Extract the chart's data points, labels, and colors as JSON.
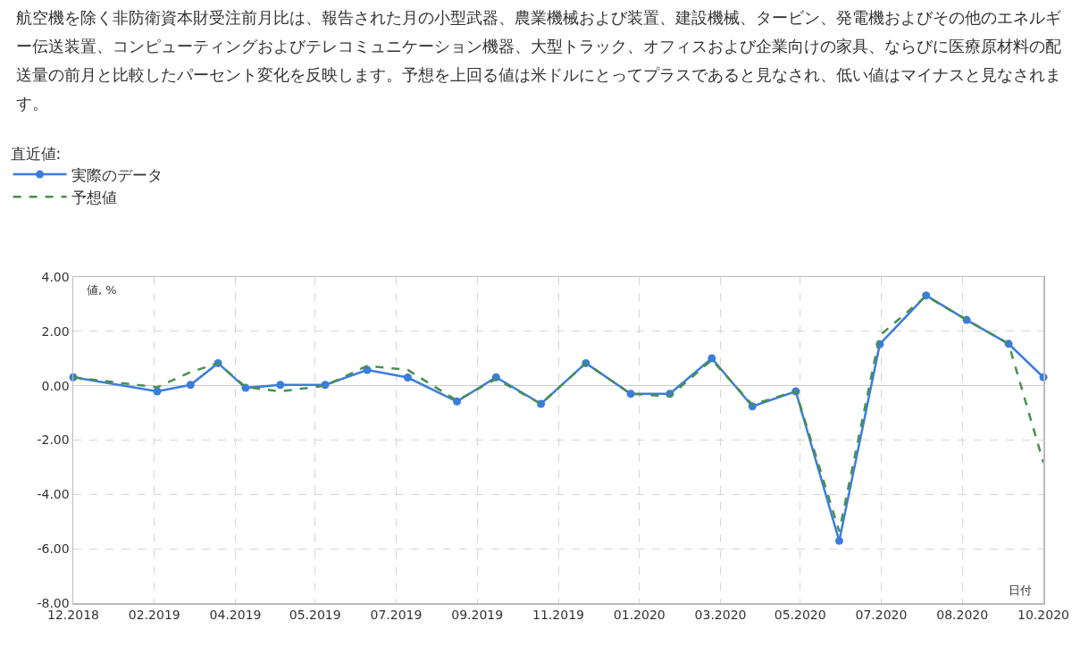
{
  "chart_data": {
    "type": "line",
    "annotations": [
      "航空機を除く非防衛資本財受注前月比は、報告された月の小型武器、農業機械および装置、建設機械、タービン、発電機およびその他のエネルギー伝送装置、コンピューティングおよびテレコミュニケーション機器、大型トラック、オフィスおよび企業向けの家具、ならびに医療原材料の配送量の前月と比較したパーセント変化を反映します。予想を上回る値は米ドルにとってプラスであると見なされ、低い値はマイナスと見なされます。"
    ],
    "legend_title": "直近値:",
    "xlabel": "日付",
    "ylabel": "値, %",
    "x": [
      "2018-12-06",
      "2019-02-02",
      "2019-02-25",
      "2019-03-16",
      "2019-04-04",
      "2019-04-28",
      "2019-05-29",
      "2019-06-27",
      "2019-07-25",
      "2019-08-28",
      "2019-09-24",
      "2019-10-25",
      "2019-11-25",
      "2019-12-26",
      "2020-01-22",
      "2020-02-20",
      "2020-03-19",
      "2020-04-18",
      "2020-05-18",
      "2020-06-15",
      "2020-07-17",
      "2020-08-14",
      "2020-09-12",
      "2020-10-06"
    ],
    "series": [
      {
        "name": "実際のデータ",
        "color": "#3b7ddd",
        "marker": "circle",
        "line_style": "solid",
        "values": [
          0.31,
          -0.21,
          0.03,
          0.83,
          -0.08,
          0.03,
          0.03,
          0.58,
          0.3,
          -0.58,
          0.31,
          -0.67,
          0.83,
          -0.3,
          -0.3,
          1.01,
          -0.76,
          -0.21,
          -5.71,
          1.53,
          3.32,
          2.42,
          1.54,
          0.31
        ]
      },
      {
        "name": "予想値",
        "color": "#4a8f4f",
        "marker": "none",
        "line_style": "dashed",
        "values": [
          0.31,
          -0.06,
          0.5,
          0.83,
          -0.05,
          -0.21,
          0.0,
          0.73,
          0.58,
          -0.55,
          0.25,
          -0.67,
          0.83,
          -0.3,
          -0.39,
          0.95,
          -0.7,
          -0.2,
          -5.36,
          1.85,
          3.3,
          2.42,
          1.54,
          -2.83
        ]
      }
    ],
    "xlim": [
      "2018-12-06",
      "2020-10-06"
    ],
    "xticks": [
      {
        "value": "2018-12-06",
        "label": "12.2018"
      },
      {
        "value": "2019-01-31",
        "label": "02.2019"
      },
      {
        "value": "2019-03-28",
        "label": "04.2019"
      },
      {
        "value": "2019-05-22",
        "label": "05.2019"
      },
      {
        "value": "2019-07-17",
        "label": "07.2019"
      },
      {
        "value": "2019-09-11",
        "label": "09.2019"
      },
      {
        "value": "2019-11-06",
        "label": "11.2019"
      },
      {
        "value": "2020-01-01",
        "label": "01.2020"
      },
      {
        "value": "2020-02-26",
        "label": "03.2020"
      },
      {
        "value": "2020-04-21",
        "label": "05.2020"
      },
      {
        "value": "2020-06-16",
        "label": "07.2020"
      },
      {
        "value": "2020-08-11",
        "label": "08.2020"
      },
      {
        "value": "2020-10-06",
        "label": "10.2020"
      }
    ],
    "ylim": [
      -8,
      4
    ],
    "yticks": [
      {
        "value": 4,
        "label": "4.00"
      },
      {
        "value": 2,
        "label": "2.00"
      },
      {
        "value": 0,
        "label": "0.00"
      },
      {
        "value": -2,
        "label": "-2.00"
      },
      {
        "value": -4,
        "label": "-4.00"
      },
      {
        "value": -6,
        "label": "-6.00"
      },
      {
        "value": -8,
        "label": "-8.00"
      }
    ],
    "grid": true,
    "legend": "top left"
  }
}
